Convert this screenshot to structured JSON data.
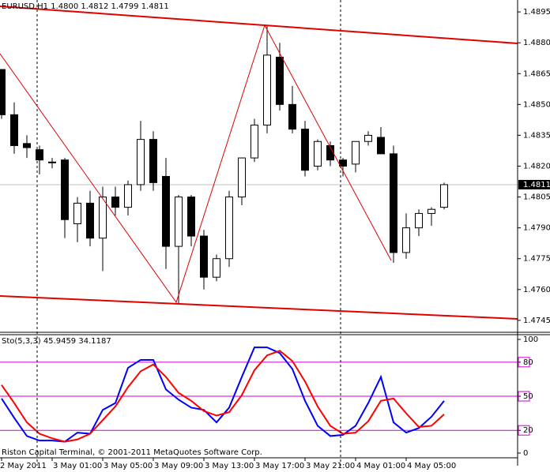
{
  "chart_data": [
    {
      "type": "candlestick",
      "title": "EURUSD,H1  1.4800 1.4812 1.4799 1.4811",
      "categories": [
        "2 May 2011",
        null,
        null,
        null,
        "3 May 01:00",
        null,
        null,
        null,
        "3 May 05:00",
        null,
        null,
        null,
        "3 May 09:00",
        null,
        null,
        null,
        "3 May 13:00",
        null,
        null,
        null,
        "3 May 17:00",
        null,
        null,
        null,
        "3 May 21:00",
        null,
        null,
        null,
        "4 May 01:00",
        null,
        null,
        null,
        "4 May 05:00",
        null,
        null,
        null
      ],
      "open": [
        1.4867,
        1.4845,
        1.4831,
        1.4828,
        1.4822,
        1.4823,
        1.4792,
        1.4802,
        1.4785,
        1.4805,
        1.48,
        1.4811,
        1.4833,
        1.4815,
        1.4781,
        1.4805,
        1.4786,
        1.4766,
        1.4775,
        1.4805,
        1.4824,
        1.484,
        1.4873,
        1.485,
        1.4838,
        1.482,
        1.483,
        1.4823,
        1.4821,
        1.4832,
        1.4834,
        1.4826,
        1.4778,
        1.479,
        1.4797,
        1.48
      ],
      "high": [
        1.4867,
        1.4851,
        1.4835,
        1.483,
        1.4824,
        1.4824,
        1.4805,
        1.4808,
        1.481,
        1.481,
        1.4813,
        1.4842,
        1.4837,
        1.4824,
        1.4806,
        1.4806,
        1.4789,
        1.4777,
        1.4808,
        1.4824,
        1.4843,
        1.4888,
        1.488,
        1.4859,
        1.4842,
        1.4833,
        1.4832,
        1.4824,
        1.4832,
        1.4837,
        1.4839,
        1.483,
        1.4797,
        1.4799,
        1.48,
        1.4812
      ],
      "low": [
        1.4843,
        1.4826,
        1.4824,
        1.4816,
        1.4819,
        1.4785,
        1.4783,
        1.4781,
        1.4769,
        1.4796,
        1.4796,
        1.4808,
        1.4808,
        1.477,
        1.4753,
        1.4781,
        1.476,
        1.4764,
        1.4771,
        1.4801,
        1.4822,
        1.4836,
        1.4847,
        1.4836,
        1.4815,
        1.4818,
        1.482,
        1.4815,
        1.4817,
        1.483,
        1.4826,
        1.4773,
        1.4775,
        1.4786,
        1.4791,
        1.4799
      ],
      "close": [
        1.4845,
        1.483,
        1.4829,
        1.4823,
        1.4822,
        1.4794,
        1.4802,
        1.4785,
        1.4805,
        1.48,
        1.4811,
        1.4833,
        1.4812,
        1.4781,
        1.4805,
        1.4786,
        1.4766,
        1.4775,
        1.4805,
        1.4824,
        1.484,
        1.4874,
        1.485,
        1.4838,
        1.4818,
        1.4832,
        1.4823,
        1.482,
        1.4832,
        1.4835,
        1.4826,
        1.4778,
        1.479,
        1.4797,
        1.4799,
        1.4811
      ],
      "up_color": "#ffffff",
      "down_color": "#000000",
      "ylim": [
        1.47392,
        1.49008
      ],
      "yticks": [
        1.4895,
        {
          "value": 1.488,
          "label": "1.4880"
        },
        1.4865,
        {
          "value": 1.485,
          "label": "1.4850"
        },
        1.4835,
        {
          "value": 1.482,
          "label": "1.4820"
        },
        1.4805,
        {
          "value": 1.479,
          "label": "1.4790"
        },
        1.4775,
        {
          "value": 1.476,
          "label": "1.4760"
        },
        1.4745
      ],
      "current_price": 1.4811
    },
    {
      "type": "line",
      "title": "Sto(5,3,3) 45.9459 34.1187",
      "series": [
        {
          "color": "#0000ff",
          "values": [
            48,
            31,
            15,
            11,
            11,
            10,
            18,
            17,
            38,
            44,
            75,
            82,
            82,
            56,
            47,
            40,
            38,
            27,
            40,
            67,
            93,
            93,
            88,
            74,
            46,
            24,
            15,
            16,
            24,
            44,
            67,
            27,
            18,
            22,
            32,
            45.9459
          ]
        },
        {
          "color": "#ff0000",
          "values": [
            60,
            44,
            27,
            17,
            13,
            10,
            12,
            17,
            29,
            41,
            58,
            72,
            78,
            67,
            53,
            46,
            37,
            33,
            36,
            51,
            73,
            86,
            90,
            81,
            63,
            41,
            24,
            17,
            18,
            28,
            46,
            48,
            35,
            23,
            24,
            34.1187
          ]
        }
      ],
      "ylim": [
        -11.1,
        104.2
      ],
      "yticks": [
        0,
        20,
        50,
        80,
        100
      ],
      "levels": [
        20,
        50,
        80
      ],
      "level_color": "#cc00cc",
      "annotations": [
        "Riston Capital Terminal, © 2001-2011 MetaQuotes Software Corp."
      ]
    }
  ]
}
